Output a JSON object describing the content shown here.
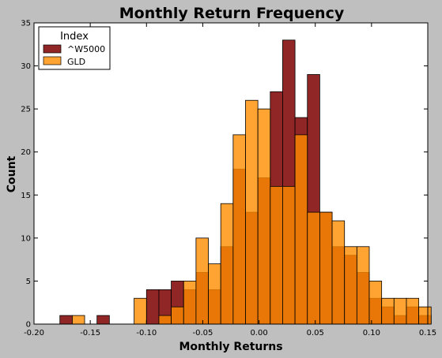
{
  "chart_data": {
    "type": "bar",
    "title": "Monthly Return Frequency",
    "xlabel": "Monthly Returns",
    "ylabel": "Count",
    "xlim": [
      -0.2,
      0.15
    ],
    "ylim": [
      0,
      35
    ],
    "xticks": [
      "-0.20",
      "-0.15",
      "-0.10",
      "-0.05",
      "0.00",
      "0.05",
      "0.10",
      "0.15"
    ],
    "yticks": [
      "0",
      "5",
      "10",
      "15",
      "20",
      "25",
      "30",
      "35"
    ],
    "grid": false,
    "legend": {
      "title": "Index",
      "placement": "top-left"
    },
    "bin_width": 0.011,
    "series": [
      {
        "name": "^W5000",
        "color": "#8b1a1a",
        "bins": [
          {
            "x": -0.1715,
            "count": 1
          },
          {
            "x": -0.1385,
            "count": 1
          },
          {
            "x": -0.0945,
            "count": 4
          },
          {
            "x": -0.0835,
            "count": 4
          },
          {
            "x": -0.0725,
            "count": 5
          },
          {
            "x": -0.0615,
            "count": 4
          },
          {
            "x": -0.0505,
            "count": 6
          },
          {
            "x": -0.0395,
            "count": 4
          },
          {
            "x": -0.0285,
            "count": 9
          },
          {
            "x": -0.0175,
            "count": 18
          },
          {
            "x": -0.0065,
            "count": 13
          },
          {
            "x": 0.0045,
            "count": 17
          },
          {
            "x": 0.0155,
            "count": 27
          },
          {
            "x": 0.0265,
            "count": 33
          },
          {
            "x": 0.0375,
            "count": 24
          },
          {
            "x": 0.0485,
            "count": 29
          },
          {
            "x": 0.0595,
            "count": 13
          },
          {
            "x": 0.0705,
            "count": 9
          },
          {
            "x": 0.0815,
            "count": 8
          },
          {
            "x": 0.0925,
            "count": 6
          },
          {
            "x": 0.1035,
            "count": 3
          },
          {
            "x": 0.1145,
            "count": 2
          },
          {
            "x": 0.1255,
            "count": 1
          },
          {
            "x": 0.1365,
            "count": 2
          },
          {
            "x": 0.1475,
            "count": 1
          }
        ]
      },
      {
        "name": "GLD",
        "color": "#ff8c00",
        "bins": [
          {
            "x": -0.1605,
            "count": 1
          },
          {
            "x": -0.1055,
            "count": 3
          },
          {
            "x": -0.0835,
            "count": 1
          },
          {
            "x": -0.0725,
            "count": 2
          },
          {
            "x": -0.0615,
            "count": 5
          },
          {
            "x": -0.0505,
            "count": 10
          },
          {
            "x": -0.0395,
            "count": 7
          },
          {
            "x": -0.0285,
            "count": 14
          },
          {
            "x": -0.0175,
            "count": 22
          },
          {
            "x": -0.0065,
            "count": 26
          },
          {
            "x": 0.0045,
            "count": 25
          },
          {
            "x": 0.0155,
            "count": 16
          },
          {
            "x": 0.0265,
            "count": 16
          },
          {
            "x": 0.0375,
            "count": 22
          },
          {
            "x": 0.0485,
            "count": 13
          },
          {
            "x": 0.0595,
            "count": 13
          },
          {
            "x": 0.0705,
            "count": 12
          },
          {
            "x": 0.0815,
            "count": 9
          },
          {
            "x": 0.0925,
            "count": 9
          },
          {
            "x": 0.1035,
            "count": 5
          },
          {
            "x": 0.1145,
            "count": 3
          },
          {
            "x": 0.1255,
            "count": 3
          },
          {
            "x": 0.1365,
            "count": 3
          },
          {
            "x": 0.1475,
            "count": 2
          }
        ]
      }
    ]
  }
}
